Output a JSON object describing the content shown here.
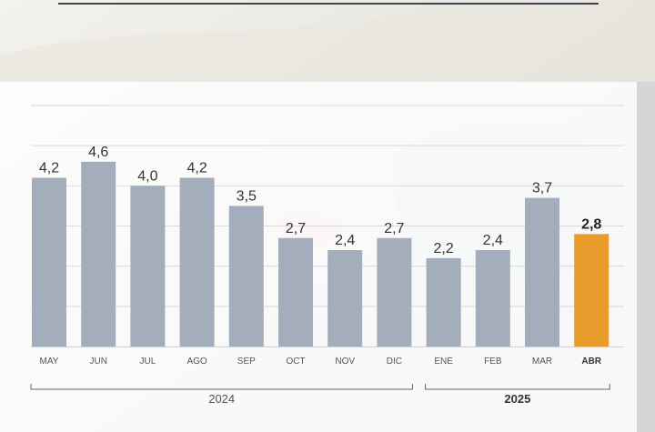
{
  "chart_data": {
    "type": "bar",
    "categories": [
      "MAY",
      "JUN",
      "JUL",
      "AGO",
      "SEP",
      "OCT",
      "NOV",
      "DIC",
      "ENE",
      "FEB",
      "MAR",
      "ABR"
    ],
    "values": [
      4.2,
      4.6,
      4.0,
      4.2,
      3.5,
      2.7,
      2.4,
      2.7,
      2.2,
      2.4,
      3.7,
      2.8
    ],
    "value_labels": [
      "4,2",
      "4,6",
      "4,0",
      "4,2",
      "3,5",
      "2,7",
      "2,4",
      "2,7",
      "2,2",
      "2,4",
      "3,7",
      "2,8"
    ],
    "highlight_index": 11,
    "colors": {
      "bar": "#a3adbb",
      "highlight": "#e89c2c",
      "grid": "#d9d9d9",
      "axis_text": "#555555"
    },
    "groups": [
      {
        "label": "2024",
        "from": 0,
        "to": 7
      },
      {
        "label": "2025",
        "from": 8,
        "to": 11,
        "bold": true
      }
    ],
    "ylim": [
      0,
      6
    ],
    "grid": true,
    "title": "",
    "xlabel": "",
    "ylabel": ""
  }
}
